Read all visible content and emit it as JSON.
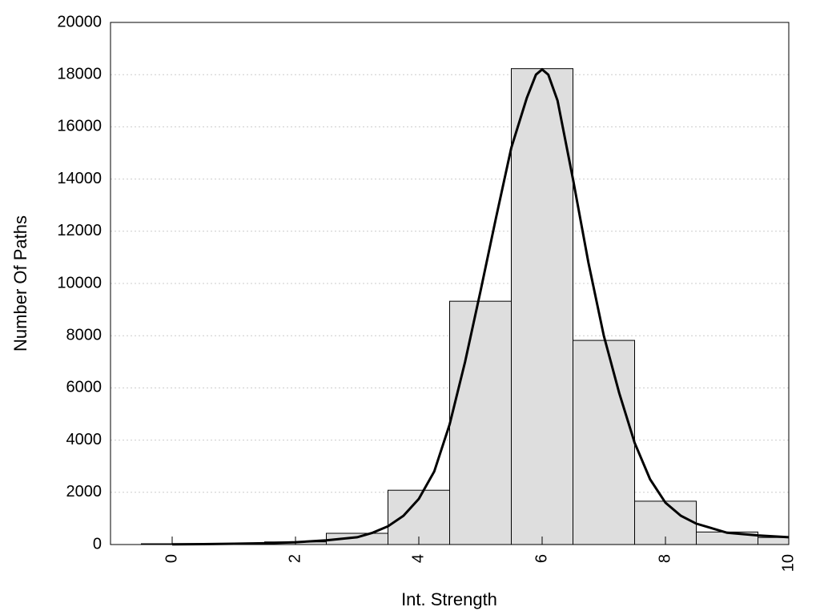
{
  "chart_data": {
    "type": "bar",
    "title": "",
    "xlabel": "Int. Strength",
    "ylabel": "Number Of Paths",
    "xlim": [
      -1,
      10
    ],
    "ylim": [
      0,
      20000
    ],
    "x_ticks": [
      0,
      2,
      4,
      6,
      8,
      10
    ],
    "x_tick_labels": [
      "0",
      "2",
      "4",
      "6",
      "8",
      "10"
    ],
    "y_ticks": [
      0,
      2000,
      4000,
      6000,
      8000,
      10000,
      12000,
      14000,
      16000,
      18000,
      20000
    ],
    "y_tick_labels": [
      "0",
      "2000",
      "4000",
      "6000",
      "8000",
      "10000",
      "12000",
      "14000",
      "16000",
      "18000",
      "20000"
    ],
    "grid": "horizontal",
    "legend": "none",
    "bin_width": 1,
    "bins": [
      {
        "x": 0,
        "value": 30
      },
      {
        "x": 1,
        "value": 40
      },
      {
        "x": 2,
        "value": 100
      },
      {
        "x": 3,
        "value": 430
      },
      {
        "x": 4,
        "value": 2080
      },
      {
        "x": 5,
        "value": 9320
      },
      {
        "x": 6,
        "value": 18230
      },
      {
        "x": 7,
        "value": 7820
      },
      {
        "x": 8,
        "value": 1660
      },
      {
        "x": 9,
        "value": 480
      },
      {
        "x": 10,
        "value": 270
      }
    ],
    "fit_curve": {
      "x": [
        0,
        0.5,
        1,
        1.5,
        2,
        2.5,
        3,
        3.25,
        3.5,
        3.75,
        4,
        4.25,
        4.5,
        4.75,
        5,
        5.25,
        5.5,
        5.75,
        5.9,
        6,
        6.1,
        6.25,
        6.5,
        6.75,
        7,
        7.25,
        7.5,
        7.75,
        8,
        8.25,
        8.5,
        9,
        9.5,
        10
      ],
      "y": [
        10,
        15,
        30,
        50,
        90,
        160,
        280,
        450,
        700,
        1100,
        1750,
        2800,
        4600,
        7000,
        9700,
        12500,
        15200,
        17100,
        18000,
        18200,
        18000,
        17000,
        14000,
        10800,
        8000,
        5800,
        3900,
        2500,
        1600,
        1100,
        800,
        450,
        350,
        280
      ]
    },
    "colors": {
      "bar_fill": "#dedede",
      "bar_stroke": "#000000",
      "line": "#000000",
      "grid": "#cccccc"
    }
  }
}
